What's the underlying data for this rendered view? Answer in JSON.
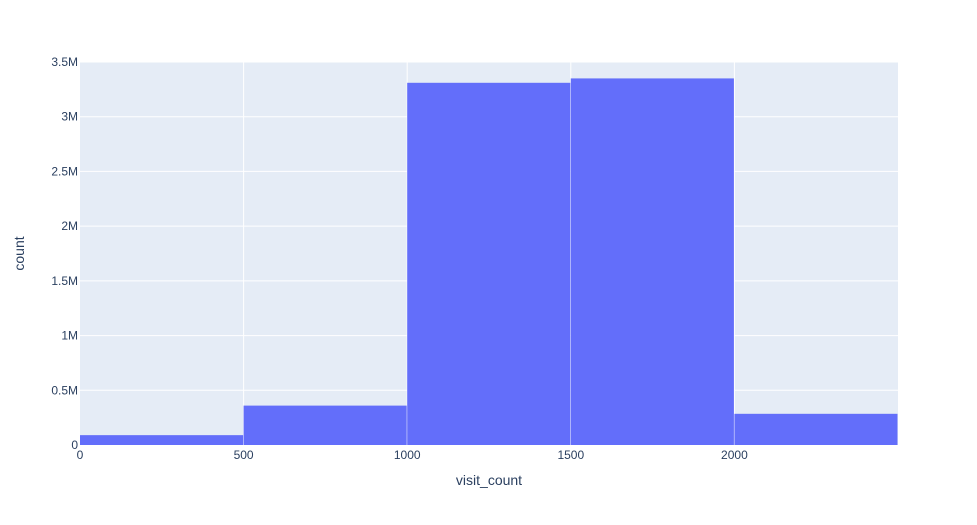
{
  "chart_data": {
    "type": "bar",
    "histogram": true,
    "xlabel": "visit_count",
    "ylabel": "count",
    "bin_edges": [
      0,
      500,
      1000,
      1500,
      2000,
      2500
    ],
    "values": [
      90000,
      360000,
      3310000,
      3350000,
      285000
    ],
    "xlim": [
      0,
      2500
    ],
    "ylim": [
      0,
      3500000
    ],
    "x_ticks": [
      {
        "value": 0,
        "label": "0"
      },
      {
        "value": 500,
        "label": "500"
      },
      {
        "value": 1000,
        "label": "1000"
      },
      {
        "value": 1500,
        "label": "1500"
      },
      {
        "value": 2000,
        "label": "2000"
      }
    ],
    "y_ticks": [
      {
        "value": 0,
        "label": "0"
      },
      {
        "value": 500000,
        "label": "0.5M"
      },
      {
        "value": 1000000,
        "label": "1M"
      },
      {
        "value": 1500000,
        "label": "1.5M"
      },
      {
        "value": 2000000,
        "label": "2M"
      },
      {
        "value": 2500000,
        "label": "2.5M"
      },
      {
        "value": 3000000,
        "label": "3M"
      },
      {
        "value": 3500000,
        "label": "3.5M"
      }
    ],
    "grid": true,
    "colors": {
      "bar": "#636efa",
      "plot_background": "#e5ecf6",
      "gridline": "#ffffff",
      "text": "#2a3f5f"
    }
  }
}
